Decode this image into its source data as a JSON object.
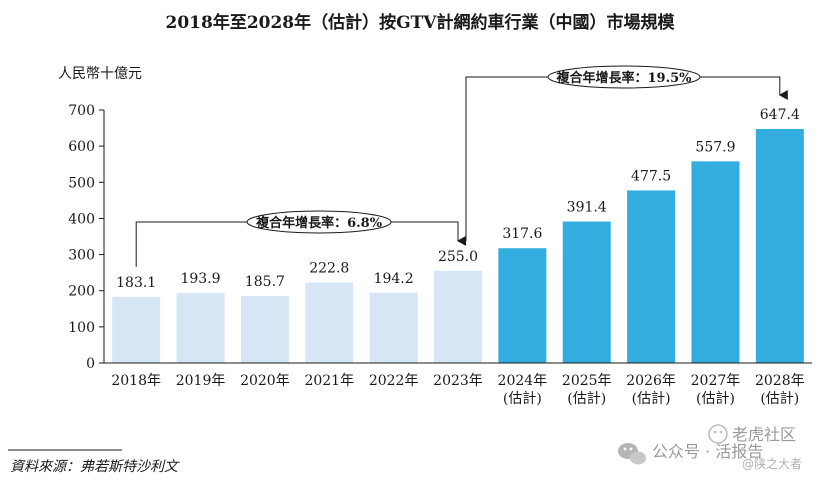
{
  "chart_data": {
    "type": "bar",
    "title": "2018年至2028年（估計）按GTV計網約車行業（中國）市場規模",
    "ylabel": "人民幣十億元",
    "xlabel": "",
    "ylim": [
      0,
      700
    ],
    "yticks": [
      "0",
      "100",
      "200",
      "300",
      "400",
      "500",
      "600",
      "700"
    ],
    "grid": false,
    "categories": [
      [
        "2018年"
      ],
      [
        "2019年"
      ],
      [
        "2020年"
      ],
      [
        "2021年"
      ],
      [
        "2022年"
      ],
      [
        "2023年"
      ],
      [
        "2024年",
        "(估計)"
      ],
      [
        "2025年",
        "(估計)"
      ],
      [
        "2026年",
        "(估計)"
      ],
      [
        "2027年",
        "(估計)"
      ],
      [
        "2028年",
        "(估計)"
      ]
    ],
    "values": [
      183.1,
      193.9,
      185.7,
      222.8,
      194.2,
      255.0,
      317.6,
      391.4,
      477.5,
      557.9,
      647.4
    ],
    "value_labels": [
      "183.1",
      "193.9",
      "185.7",
      "222.8",
      "194.2",
      "255.0",
      "317.6",
      "391.4",
      "477.5",
      "557.9",
      "647.4"
    ],
    "colors": {
      "historical": "#d6e6f5",
      "forecast": "#33ade0"
    },
    "forecast_start_index": 6,
    "annotations": [
      {
        "label": "複合年增長率：6.8%",
        "from_index": 0,
        "to_index": 5
      },
      {
        "label": "複合年增長率：19.5%",
        "from_index": 5,
        "to_index": 10
      }
    ]
  },
  "source": "資料來源：弗若斯特沙利文",
  "watermark": {
    "brand": "公众号 · 活报告",
    "site": "老虎社区",
    "handle": "@陕之大者"
  }
}
